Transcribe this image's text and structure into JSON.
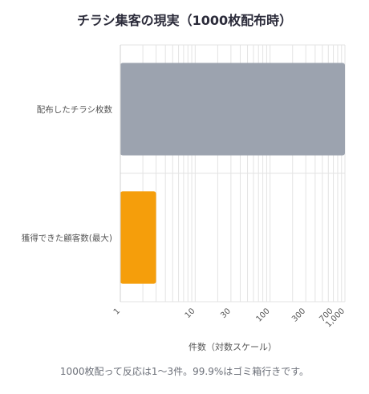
{
  "chart_data": {
    "type": "bar",
    "orientation": "horizontal",
    "title": "チラシ集客の現実（1000枚配布時）",
    "categories": [
      "配布したチラシ枚数",
      "獲得できた顧客数(最大)"
    ],
    "values": [
      1000,
      3
    ],
    "bar_colors": [
      "#9ca3af",
      "#f59e0b"
    ],
    "xlabel": "件数（対数スケール）",
    "ylabel": "",
    "xscale": "log",
    "xlim": [
      1,
      1000
    ],
    "xticks": [
      1,
      10,
      30,
      100,
      300,
      700,
      1000
    ],
    "xtick_labels": [
      "1",
      "10",
      "30",
      "100",
      "300",
      "700",
      "1,000"
    ],
    "grid": true,
    "legend": "none"
  },
  "caption": "1000枚配って反応は1〜3件。99.9%はゴミ箱行きです。"
}
